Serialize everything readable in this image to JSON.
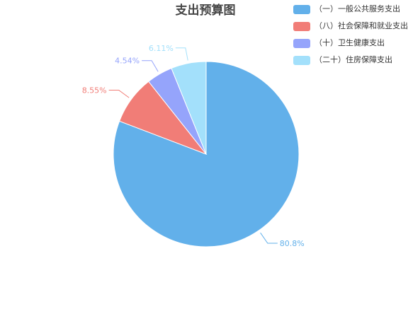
{
  "chart_data": {
    "type": "pie",
    "title": "支出预算图",
    "legend_position": "top-right",
    "slices": [
      {
        "label": "（一）一般公共服务支出",
        "value": 80.8,
        "value_label": "80.8%",
        "color": "#62b0ea"
      },
      {
        "label": "（八）社会保障和就业支出",
        "value": 8.55,
        "value_label": "8.55%",
        "color": "#f17d77"
      },
      {
        "label": "（十）卫生健康支出",
        "value": 4.54,
        "value_label": "4.54%",
        "color": "#95a4fb"
      },
      {
        "label": "（二十）住房保障支出",
        "value": 6.11,
        "value_label": "6.11%",
        "color": "#a3e0fb"
      }
    ]
  }
}
